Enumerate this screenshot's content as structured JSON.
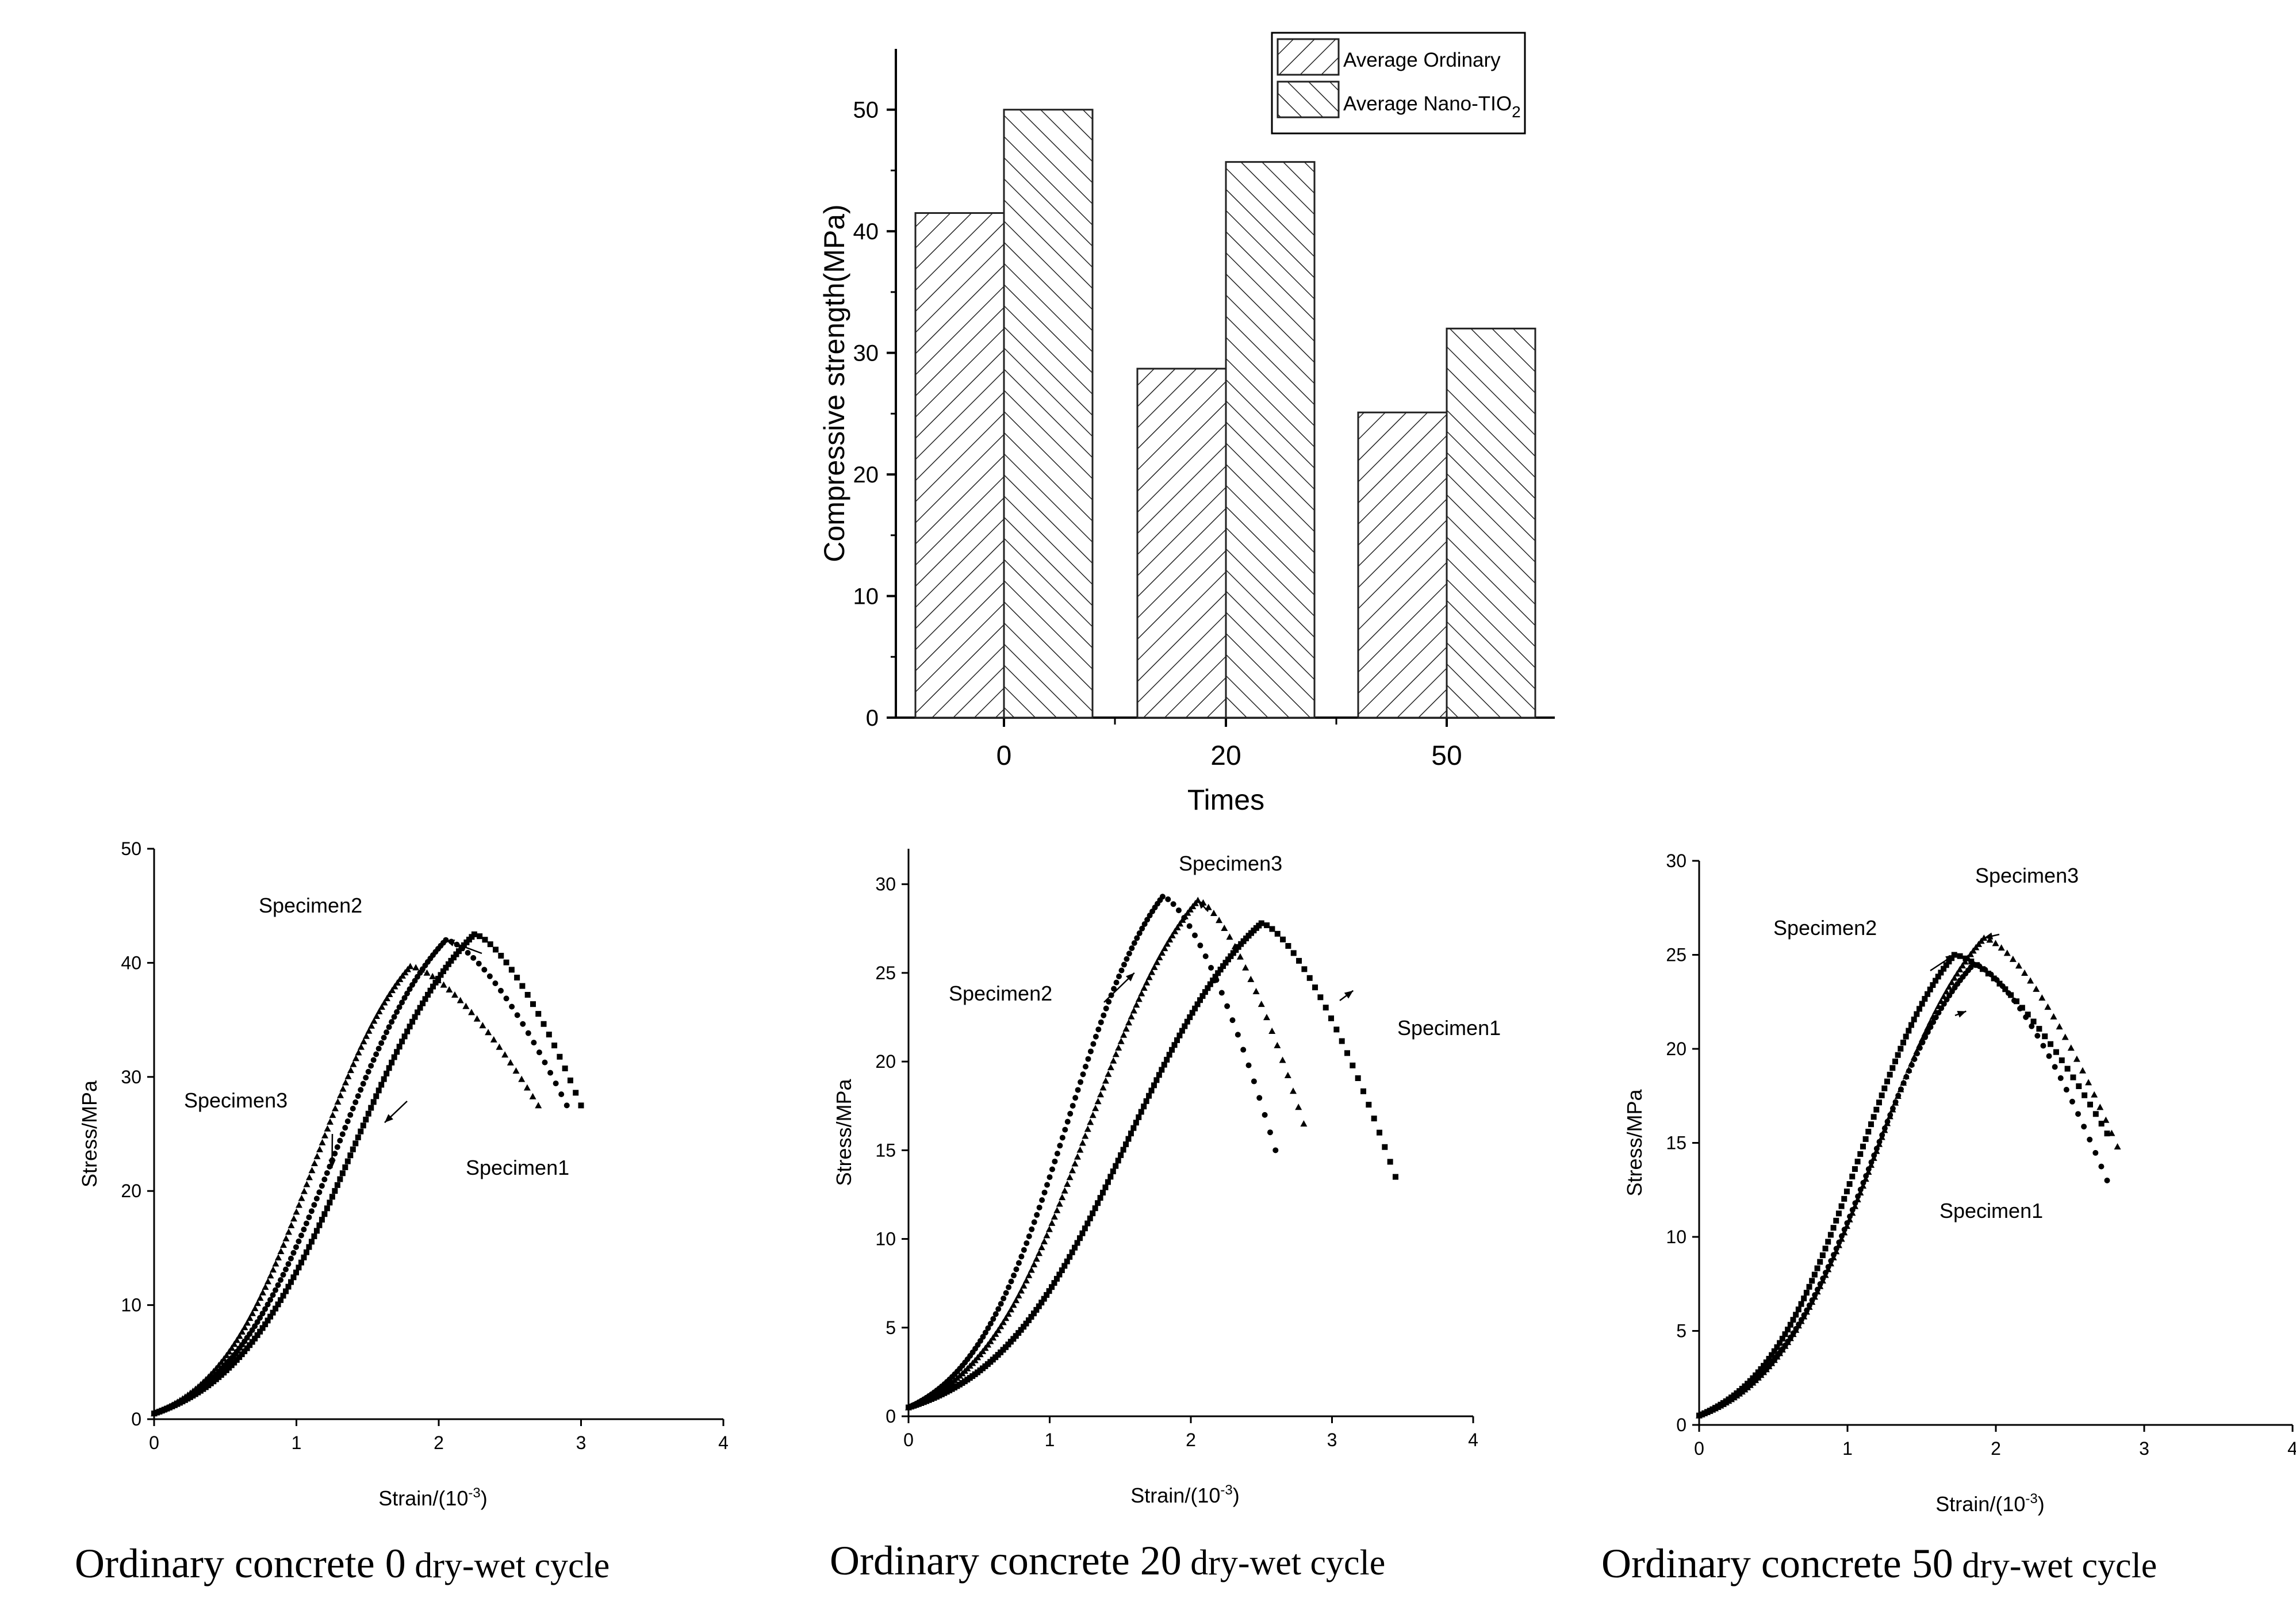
{
  "chart_data": [
    {
      "type": "bar",
      "categories": [
        "0",
        "20",
        "50"
      ],
      "xlabel": "Times",
      "ylabel": "Compressive strength(MPa)",
      "ylim": [
        0,
        55
      ],
      "yticks": [
        "0",
        "10",
        "20",
        "30",
        "40",
        "50"
      ],
      "legend_position": "top-right",
      "series": [
        {
          "name": "Average Ordinary",
          "values": [
            41.5,
            28.7,
            25.1
          ],
          "pattern": "hatch-forward"
        },
        {
          "name": "Average Nano-TIO",
          "name_subscript": "2",
          "values": [
            50.0,
            45.7,
            32.0
          ],
          "pattern": "hatch-backward"
        }
      ]
    },
    {
      "type": "scatter",
      "caption_main": "Ordinary concrete 0",
      "caption_tail": " dry-wet cycle",
      "xlabel": "Strain/(10",
      "xlabel_exp": "-3",
      "xlabel_close": ")",
      "ylabel": "Stress/MPa",
      "xlim": [
        0,
        4
      ],
      "ylim": [
        0,
        50
      ],
      "xticks": [
        "0",
        "1",
        "2",
        "3",
        "4"
      ],
      "yticks": [
        "0",
        "10",
        "20",
        "30",
        "40",
        "50"
      ],
      "series": [
        {
          "name": "Specimen1",
          "peak_x": 2.25,
          "peak_y": 42.5,
          "end_x": 3.0,
          "end_y": 27.5,
          "marker": "square"
        },
        {
          "name": "Specimen2",
          "peak_x": 2.05,
          "peak_y": 42.0,
          "end_x": 2.9,
          "end_y": 27.5,
          "marker": "circle"
        },
        {
          "name": "Specimen3",
          "peak_x": 1.8,
          "peak_y": 39.7,
          "end_x": 2.7,
          "end_y": 27.5,
          "marker": "triangle"
        }
      ],
      "annotations": [
        {
          "text": "Specimen2",
          "series": "Specimen2"
        },
        {
          "text": "Specimen3",
          "series": "Specimen3"
        },
        {
          "text": "Specimen1",
          "series": "Specimen1"
        }
      ]
    },
    {
      "type": "scatter",
      "caption_main": "Ordinary concrete 20",
      "caption_tail": " dry-wet cycle",
      "xlabel": "Strain/(10",
      "xlabel_exp": "-3",
      "xlabel_close": ")",
      "ylabel": "Stress/MPa",
      "xlim": [
        0,
        4
      ],
      "ylim": [
        0,
        32
      ],
      "xticks": [
        "0",
        "1",
        "2",
        "3",
        "4"
      ],
      "yticks": [
        "0",
        "5",
        "10",
        "15",
        "20",
        "25",
        "30"
      ],
      "series": [
        {
          "name": "Specimen1",
          "peak_x": 2.5,
          "peak_y": 27.8,
          "end_x": 3.45,
          "end_y": 13.5,
          "marker": "square"
        },
        {
          "name": "Specimen2",
          "peak_x": 1.8,
          "peak_y": 29.3,
          "end_x": 2.6,
          "end_y": 15.0,
          "marker": "circle"
        },
        {
          "name": "Specimen3",
          "peak_x": 2.05,
          "peak_y": 29.1,
          "end_x": 2.8,
          "end_y": 16.5,
          "marker": "triangle"
        }
      ],
      "annotations": [
        {
          "text": "Specimen3",
          "series": "Specimen3"
        },
        {
          "text": "Specimen2",
          "series": "Specimen2"
        },
        {
          "text": "Specimen1",
          "series": "Specimen1"
        }
      ]
    },
    {
      "type": "scatter",
      "caption_main": "Ordinary concrete 50",
      "caption_tail": " dry-wet cycle",
      "xlabel": "Strain/(10",
      "xlabel_exp": "-3",
      "xlabel_close": ")",
      "ylabel": "Stress/MPa",
      "xlim": [
        0,
        4
      ],
      "ylim": [
        0,
        30
      ],
      "xticks": [
        "0",
        "1",
        "2",
        "3",
        "4"
      ],
      "yticks": [
        "0",
        "5",
        "10",
        "15",
        "20",
        "25",
        "30"
      ],
      "series": [
        {
          "name": "Specimen1",
          "peak_x": 1.85,
          "peak_y": 24.5,
          "end_x": 2.75,
          "end_y": 13.0,
          "marker": "circle"
        },
        {
          "name": "Specimen2",
          "peak_x": 1.72,
          "peak_y": 25.0,
          "end_x": 2.75,
          "end_y": 15.5,
          "marker": "square"
        },
        {
          "name": "Specimen3",
          "peak_x": 1.92,
          "peak_y": 25.9,
          "end_x": 2.82,
          "end_y": 14.8,
          "marker": "triangle"
        }
      ],
      "annotations": [
        {
          "text": "Specimen3",
          "series": "Specimen3"
        },
        {
          "text": "Specimen2",
          "series": "Specimen2"
        },
        {
          "text": "Specimen1",
          "series": "Specimen1"
        }
      ]
    }
  ]
}
